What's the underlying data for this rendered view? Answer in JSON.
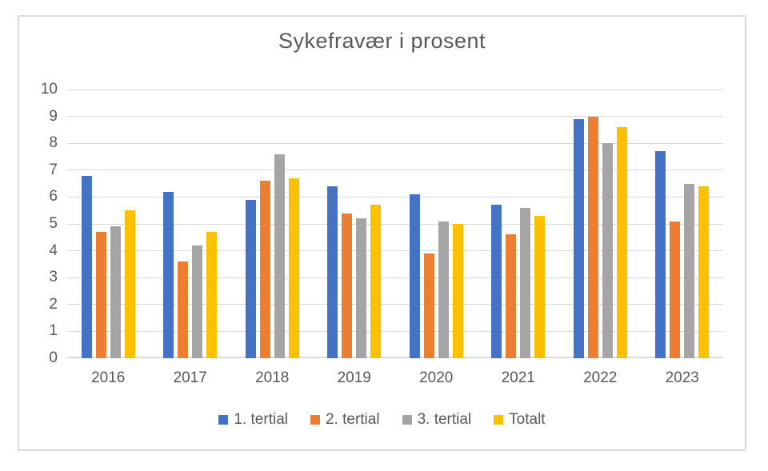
{
  "chart_data": {
    "type": "bar",
    "title": "Sykefravær i prosent",
    "categories": [
      "2016",
      "2017",
      "2018",
      "2019",
      "2020",
      "2021",
      "2022",
      "2023"
    ],
    "series": [
      {
        "name": "1. tertial",
        "color": "#4472C4",
        "values": [
          6.8,
          6.2,
          5.9,
          6.4,
          6.1,
          5.7,
          8.9,
          7.7
        ]
      },
      {
        "name": "2. tertial",
        "color": "#ED7D31",
        "values": [
          4.7,
          3.6,
          6.6,
          5.4,
          3.9,
          4.6,
          9.0,
          5.1
        ]
      },
      {
        "name": "3. tertial",
        "color": "#A5A5A5",
        "values": [
          4.9,
          4.2,
          7.6,
          5.2,
          5.1,
          5.6,
          8.0,
          6.5
        ]
      },
      {
        "name": "Totalt",
        "color": "#FFC000",
        "values": [
          5.5,
          4.7,
          6.7,
          5.7,
          5.0,
          5.3,
          8.6,
          6.4
        ]
      }
    ],
    "ylim": [
      0,
      10
    ],
    "yticks": [
      0,
      1,
      2,
      3,
      4,
      5,
      6,
      7,
      8,
      9,
      10
    ],
    "grid": true,
    "legend_position": "bottom"
  },
  "style": {
    "text_color": "#595959",
    "gridline_color": "#D9D9D9",
    "frame_border_color": "#D9D9D9",
    "background": "#FFFFFF"
  }
}
